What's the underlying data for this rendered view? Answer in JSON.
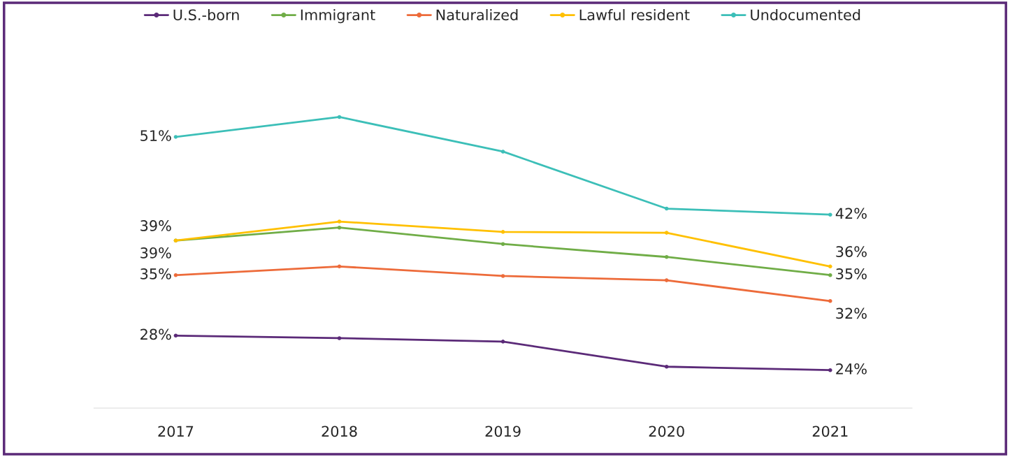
{
  "chart_data": {
    "type": "line",
    "categories": [
      "2017",
      "2018",
      "2019",
      "2020",
      "2021"
    ],
    "series": [
      {
        "name": "U.S.-born",
        "color": "#5b2a78",
        "values": [
          28,
          27.7,
          27.3,
          24.4,
          24
        ],
        "value_labels": [
          "28%",
          null,
          null,
          null,
          "24%"
        ]
      },
      {
        "name": "Immigrant",
        "color": "#70ad47",
        "values": [
          39,
          40.5,
          38.6,
          37.1,
          35
        ],
        "value_labels": [
          "39%",
          null,
          null,
          null,
          "35%"
        ]
      },
      {
        "name": "Naturalized",
        "color": "#ed6b3a",
        "values": [
          35,
          36,
          34.9,
          34.4,
          32
        ],
        "value_labels": [
          "35%",
          null,
          null,
          null,
          "32%"
        ]
      },
      {
        "name": "Lawful resident",
        "color": "#ffc000",
        "values": [
          39,
          41.2,
          40,
          39.9,
          36
        ],
        "value_labels": [
          "39%",
          null,
          null,
          null,
          "36%"
        ]
      },
      {
        "name": "Undocumented",
        "color": "#3cbfb8",
        "values": [
          51,
          53.3,
          49.3,
          42.7,
          42
        ],
        "value_labels": [
          "51%",
          null,
          null,
          null,
          "42%"
        ]
      }
    ],
    "tick_labels": "x",
    "legend": "top",
    "marker": "circle",
    "line_style": "solid",
    "grid": false
  }
}
